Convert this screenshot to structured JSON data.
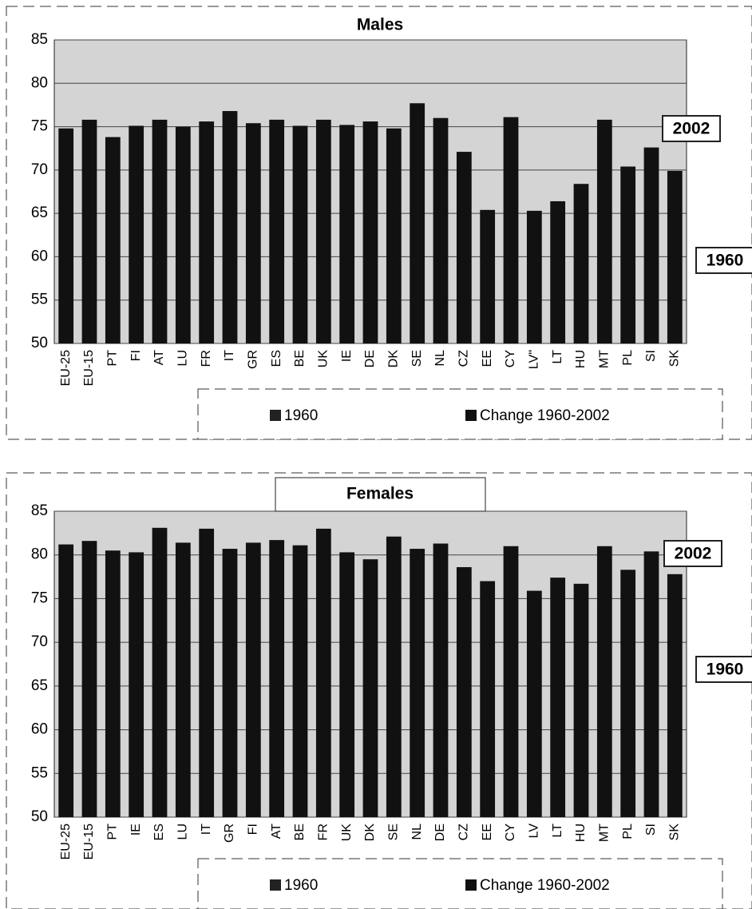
{
  "chart_data": [
    {
      "type": "bar",
      "title": "Males",
      "categories": [
        "EU-25",
        "EU-15",
        "PT",
        "FI",
        "AT",
        "LU",
        "FR",
        "IT",
        "GR",
        "ES",
        "BE",
        "UK",
        "IE",
        "DE",
        "DK",
        "SE",
        "NL",
        "CZ",
        "EE",
        "CY",
        "LV\"",
        "LT",
        "HU",
        "MT",
        "PL",
        "SI",
        "SK"
      ],
      "values": [
        74.8,
        75.8,
        73.8,
        75.1,
        75.8,
        75.0,
        75.6,
        76.8,
        75.4,
        75.8,
        75.1,
        75.8,
        75.2,
        75.6,
        74.8,
        77.7,
        76.0,
        72.1,
        65.4,
        76.1,
        65.3,
        66.4,
        68.4,
        75.8,
        70.4,
        72.6,
        69.9
      ],
      "color": "#111111",
      "ylim": [
        50,
        85
      ],
      "yticks": [
        50,
        55,
        60,
        65,
        70,
        75,
        80,
        85
      ],
      "grid": true,
      "legend": [
        {
          "name": "1960",
          "color": "#222222"
        },
        {
          "name": "Change 1960-2002",
          "color": "#111111"
        }
      ],
      "annotations": [
        "2002",
        "1960"
      ]
    },
    {
      "type": "bar",
      "title": "Females",
      "categories": [
        "EU-25",
        "EU-15",
        "PT",
        "IE",
        "ES",
        "LU",
        "IT",
        "GR",
        "FI",
        "AT",
        "BE",
        "FR",
        "UK",
        "DK",
        "SE",
        "NL",
        "DE",
        "CZ",
        "EE",
        "CY",
        "LV",
        "LT",
        "HU",
        "MT",
        "PL",
        "SI",
        "SK"
      ],
      "values": [
        81.2,
        81.6,
        80.5,
        80.3,
        83.1,
        81.4,
        83.0,
        80.7,
        81.4,
        81.7,
        81.1,
        83.0,
        80.3,
        79.5,
        82.1,
        80.7,
        81.3,
        78.6,
        77.0,
        81.0,
        75.9,
        77.4,
        76.7,
        81.0,
        78.3,
        80.4,
        77.8
      ],
      "color": "#111111",
      "ylim": [
        50,
        85
      ],
      "yticks": [
        50,
        55,
        60,
        65,
        70,
        75,
        80,
        85
      ],
      "grid": true,
      "legend": [
        {
          "name": "1960",
          "color": "#222222"
        },
        {
          "name": "Change 1960-2002",
          "color": "#111111"
        }
      ],
      "annotations": [
        "2002",
        "1960"
      ]
    }
  ]
}
